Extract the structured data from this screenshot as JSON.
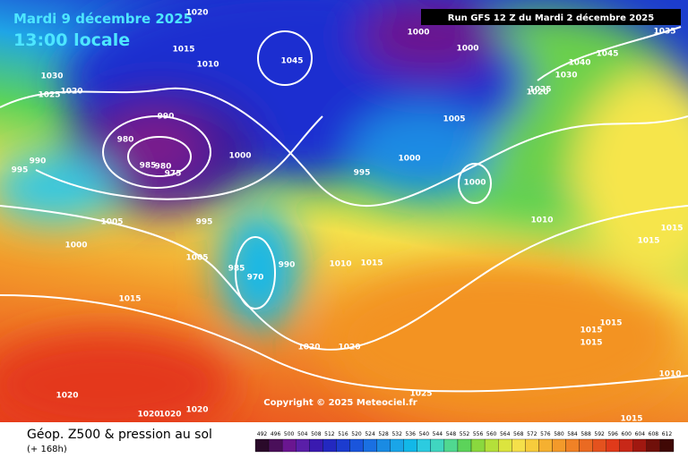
{
  "header": {
    "date": "Mardi 9 décembre 2025",
    "time": "13:00 locale",
    "run": "Run GFS 12 Z du Mardi 2 décembre 2025"
  },
  "copyright": "Copyright © 2025 Meteociel.fr",
  "footer": {
    "title": "Géop. Z500 & pression au sol",
    "lead": "(+ 168h)"
  },
  "isobar_labels": [
    1020,
    1015,
    1010,
    1030,
    1025,
    1020,
    1000,
    1000,
    1035,
    1045,
    1040,
    1045,
    990,
    980,
    985,
    980,
    975,
    1000,
    995,
    1000,
    1005,
    1000,
    1010,
    1015,
    1015,
    990,
    995,
    1005,
    995,
    1000,
    1005,
    985,
    970,
    990,
    1010,
    1015,
    1015,
    1020,
    1020,
    1015,
    1015,
    1015,
    1010,
    1025,
    1020,
    1020,
    1020,
    1020,
    1015,
    1025,
    1030,
    1020
  ],
  "colorbar": {
    "labels": [
      492,
      496,
      500,
      504,
      508,
      512,
      516,
      520,
      524,
      528,
      532,
      536,
      540,
      544,
      548,
      552,
      556,
      560,
      564,
      568,
      572,
      576,
      580,
      584,
      588,
      592,
      596,
      600,
      604,
      608,
      612
    ]
  }
}
